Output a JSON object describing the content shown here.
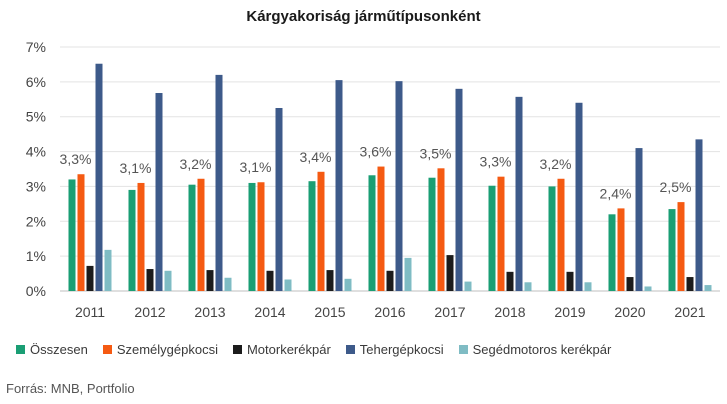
{
  "chart_data": {
    "type": "bar",
    "title": "Kárgyakoriság járműtípusonként",
    "categories": [
      "2011",
      "2012",
      "2013",
      "2014",
      "2015",
      "2016",
      "2017",
      "2018",
      "2019",
      "2020",
      "2021"
    ],
    "series": [
      {
        "name": "Összesen",
        "color": "#1a9e74",
        "values": [
          3.2,
          2.9,
          3.05,
          3.1,
          3.15,
          3.32,
          3.25,
          3.02,
          3.0,
          2.2,
          2.35
        ]
      },
      {
        "name": "Személygépkocsi",
        "color": "#f55a12",
        "values": [
          3.35,
          3.1,
          3.22,
          3.12,
          3.42,
          3.57,
          3.52,
          3.28,
          3.22,
          2.37,
          2.55
        ]
      },
      {
        "name": "Motorkerékpár",
        "color": "#1c1c1c",
        "values": [
          0.72,
          0.63,
          0.6,
          0.58,
          0.6,
          0.58,
          1.03,
          0.55,
          0.55,
          0.4,
          0.4
        ]
      },
      {
        "name": "Tehergépkocsi",
        "color": "#3d5a8a",
        "values": [
          6.52,
          5.68,
          6.2,
          5.25,
          6.05,
          6.02,
          5.8,
          5.57,
          5.4,
          4.1,
          4.35
        ]
      },
      {
        "name": "Segédmotoros kerékpár",
        "color": "#7fbcc4",
        "values": [
          1.18,
          0.58,
          0.38,
          0.33,
          0.35,
          0.95,
          0.27,
          0.25,
          0.25,
          0.13,
          0.17
        ]
      }
    ],
    "data_labels": [
      "3,3%",
      "3,1%",
      "3,2%",
      "3,1%",
      "3,4%",
      "3,6%",
      "3,5%",
      "3,3%",
      "3,2%",
      "2,4%",
      "2,5%"
    ],
    "yticks": [
      "0%",
      "1%",
      "2%",
      "3%",
      "4%",
      "5%",
      "6%",
      "7%"
    ],
    "ylim": [
      0,
      7
    ],
    "grid": true,
    "legend_position": "bottom"
  },
  "source": "Forrás: MNB, Portfolio"
}
